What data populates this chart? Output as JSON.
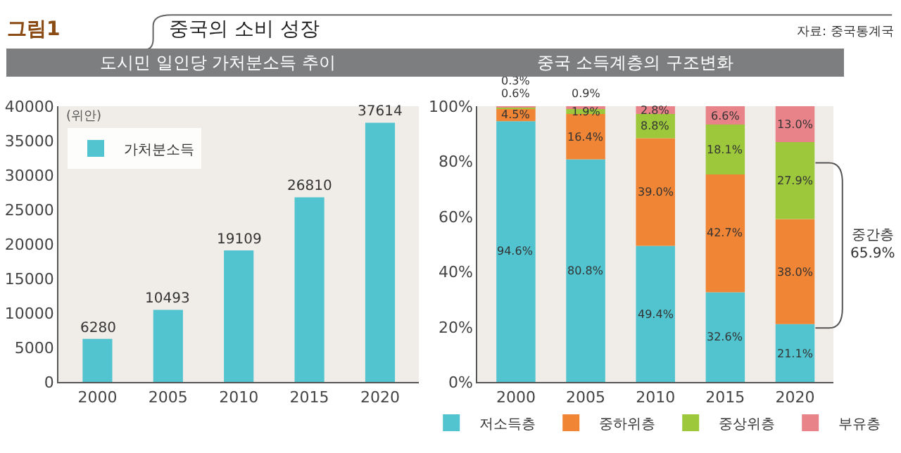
{
  "chart_data": [
    {
      "type": "bar",
      "title": "도시민 일인당 가처분소득 추이",
      "ylabel": "(위안)",
      "categories": [
        "2000",
        "2005",
        "2010",
        "2015",
        "2020"
      ],
      "series": [
        {
          "name": "가처분소득",
          "color": "#52c4cf",
          "values": [
            6280,
            10493,
            19109,
            26810,
            37614
          ]
        }
      ],
      "ylim": [
        0,
        40000
      ],
      "yticks": [
        0,
        5000,
        10000,
        15000,
        20000,
        25000,
        30000,
        35000,
        40000
      ],
      "data_labels": true,
      "legend": "top left",
      "grid": false,
      "annotations": [
        "그림1",
        "중국의 소비 성장",
        "자료: 중국통계국"
      ]
    },
    {
      "type": "bar",
      "title": "중국 소득계층의 구조변화",
      "stacked": true,
      "categories": [
        "2000",
        "2005",
        "2010",
        "2015",
        "2020"
      ],
      "series": [
        {
          "name": "저소득층",
          "color": "#52c4cf",
          "values": [
            94.6,
            80.8,
            49.4,
            32.6,
            21.1
          ],
          "value_labels": [
            "94.6%",
            "80.8%",
            "49.4%",
            "32.6%",
            "21.1%"
          ]
        },
        {
          "name": "중하위층",
          "color": "#f08535",
          "values": [
            4.5,
            16.4,
            39.0,
            42.7,
            38.0
          ],
          "value_labels": [
            "4.5%",
            "16.4%",
            "39.0%",
            "42.7%",
            "38.0%"
          ]
        },
        {
          "name": "중상위층",
          "color": "#9dc83b",
          "values": [
            0.6,
            1.9,
            8.8,
            18.1,
            27.9
          ],
          "value_labels": [
            "0.6%",
            "1.9%",
            "8.8%",
            "18.1%",
            "27.9%"
          ]
        },
        {
          "name": "부유층",
          "color": "#e9838a",
          "values": [
            0.3,
            0.9,
            2.8,
            6.6,
            13.0
          ],
          "value_labels": [
            "0.3%",
            "0.9%",
            "2.8%",
            "6.6%",
            "13.0%"
          ]
        }
      ],
      "ylim": [
        0,
        100
      ],
      "yticks": [
        {
          "value": 0,
          "label": "0%"
        },
        {
          "value": 20,
          "label": "20%"
        },
        {
          "value": 40,
          "label": "40%"
        },
        {
          "value": 60,
          "label": "60%"
        },
        {
          "value": 80,
          "label": "80%"
        },
        {
          "value": 100,
          "label": "100%"
        }
      ],
      "data_labels": true,
      "legend": "bottom",
      "grid": false,
      "annotations": [
        "중간층\n65.9%"
      ]
    }
  ]
}
